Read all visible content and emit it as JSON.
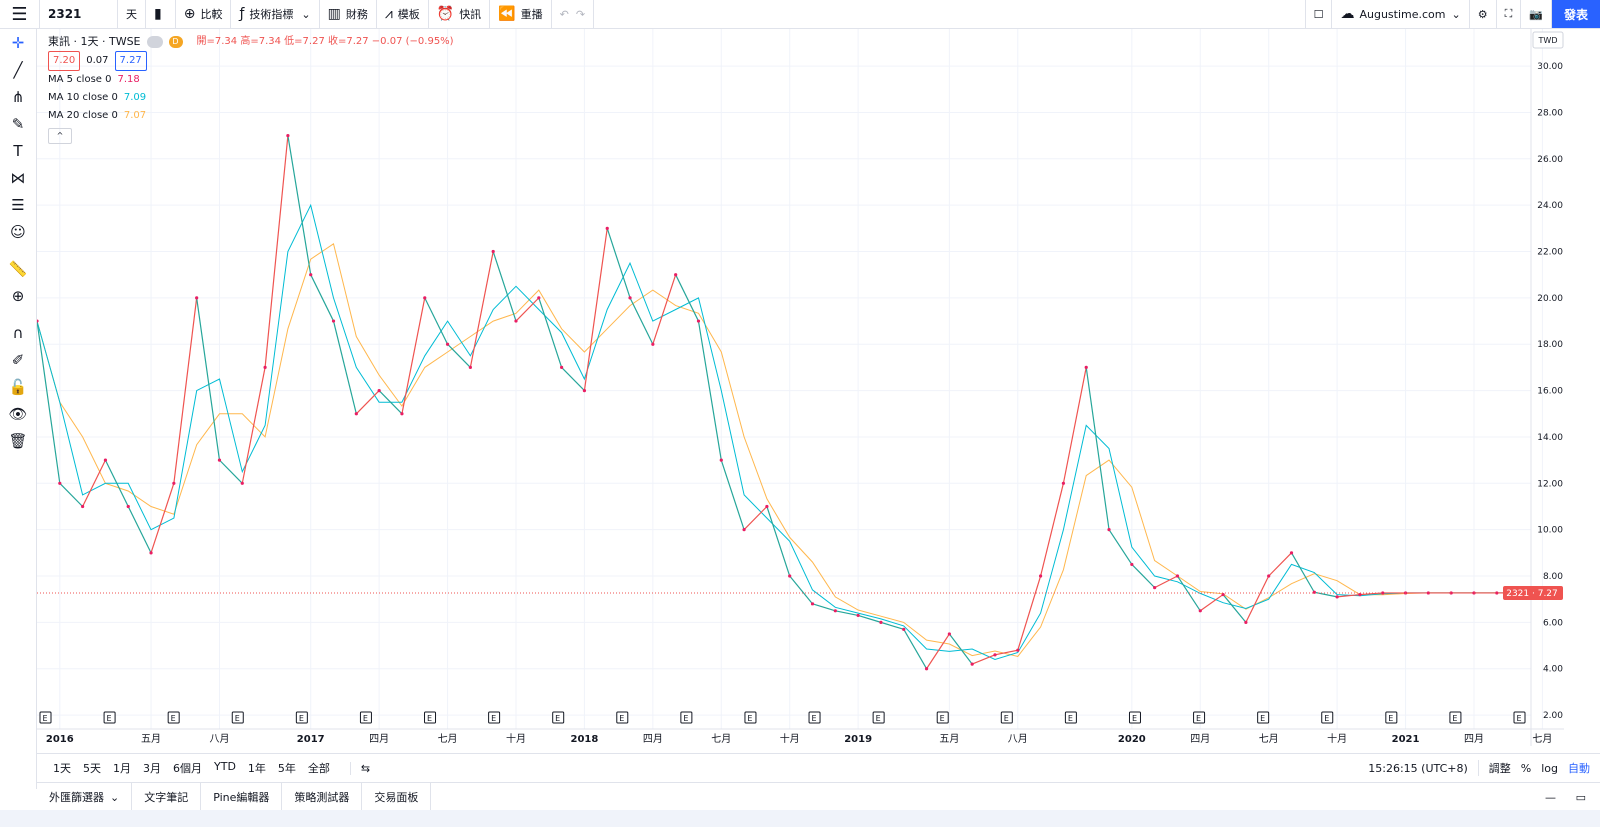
{
  "toolbar": {
    "symbol": "2321",
    "interval": "天",
    "compare": "比較",
    "indicators": "技術指標",
    "financials": "財務",
    "templates": "模板",
    "alerts": "快訊",
    "replay": "重播",
    "account": "Augustime.com",
    "publish": "發表"
  },
  "legend": {
    "title": "東訊 · 1天 · TWSE",
    "ohlc": "開=7.34 高=7.34 低=7.27 收=7.27 −0.07 (−0.95%)",
    "bid": "7.20",
    "spread": "0.07",
    "ask": "7.27",
    "ma5_label": "MA 5 close 0",
    "ma5_value": "7.18",
    "ma10_label": "MA 10 close 0",
    "ma10_value": "7.09",
    "ma20_label": "MA 20 close 0",
    "ma20_value": "7.07",
    "currency": "TWD",
    "last_symbol": "2321",
    "last_price": "7.27"
  },
  "colors": {
    "up": "#ef5350",
    "down": "#26a69a",
    "ma5": "#e91e63",
    "ma10": "#00bcd4",
    "ma20": "#ffb74d",
    "accent": "#2962ff"
  },
  "chart_data": {
    "type": "line",
    "title": "東訊 · 1天 · TWSE",
    "yticks": [
      "2.00",
      "4.00",
      "6.00",
      "8.00",
      "10.00",
      "12.00",
      "14.00",
      "16.00",
      "18.00",
      "20.00",
      "22.00",
      "24.00",
      "26.00",
      "28.00",
      "30.00"
    ],
    "ylim": [
      1.4,
      31.6
    ],
    "xlim": [
      0,
      65.5
    ],
    "xticks": [
      {
        "x": 1,
        "label": "2016"
      },
      {
        "x": 5,
        "label": "五月"
      },
      {
        "x": 8,
        "label": "八月"
      },
      {
        "x": 12,
        "label": "2017"
      },
      {
        "x": 15,
        "label": "四月"
      },
      {
        "x": 18,
        "label": "七月"
      },
      {
        "x": 21,
        "label": "十月"
      },
      {
        "x": 24,
        "label": "2018"
      },
      {
        "x": 27,
        "label": "四月"
      },
      {
        "x": 30,
        "label": "七月"
      },
      {
        "x": 33,
        "label": "十月"
      },
      {
        "x": 36,
        "label": "2019"
      },
      {
        "x": 40,
        "label": "五月"
      },
      {
        "x": 43,
        "label": "八月"
      },
      {
        "x": 48,
        "label": "2020"
      },
      {
        "x": 51,
        "label": "四月"
      },
      {
        "x": 54,
        "label": "七月"
      },
      {
        "x": 57,
        "label": "十月"
      },
      {
        "x": 60,
        "label": "2021"
      },
      {
        "x": 63,
        "label": "四月"
      },
      {
        "x": 66,
        "label": "七月"
      }
    ],
    "series": [
      {
        "x": [
          0,
          1,
          2,
          3,
          4,
          5,
          6,
          7,
          8,
          9,
          10,
          11,
          12,
          13,
          14,
          15,
          16,
          17,
          18,
          19,
          20,
          21,
          22,
          23,
          24,
          25,
          26,
          27,
          28,
          29,
          30,
          31,
          32,
          33,
          34,
          35,
          36,
          37,
          38,
          39,
          40,
          41,
          42,
          43,
          44,
          45,
          46,
          47,
          48,
          49,
          50,
          51,
          52,
          53,
          54,
          55,
          56,
          57,
          58,
          59,
          60,
          61,
          62,
          63,
          64,
          65
        ],
        "values": [
          19,
          12,
          11,
          13,
          11,
          9,
          12,
          20,
          13,
          12,
          17,
          27,
          21,
          19,
          15,
          16,
          15,
          20,
          18,
          17,
          22,
          19,
          20,
          17,
          16,
          23,
          20,
          18,
          21,
          19,
          13,
          10,
          11,
          8,
          6.8,
          6.5,
          6.3,
          6,
          5.7,
          4,
          5.5,
          4.2,
          4.6,
          4.8,
          8,
          12,
          17,
          10,
          8.5,
          7.5,
          8,
          6.5,
          7.2,
          6,
          8,
          9,
          7.3,
          7.1,
          7.2,
          7.27,
          7.27,
          7.27,
          7.27,
          7.27,
          7.27,
          7.27
        ]
      }
    ]
  },
  "events_count": 24,
  "time_ranges": [
    "1天",
    "5天",
    "1月",
    "3月",
    "6個月",
    "YTD",
    "1年",
    "5年",
    "全部"
  ],
  "clock": "15:26:15 (UTC+8)",
  "scale_options": [
    "調整",
    "%",
    "log",
    "自動"
  ],
  "panels": [
    "外匯篩選器",
    "文字筆記",
    "Pine編輯器",
    "策略測試器",
    "交易面板"
  ]
}
